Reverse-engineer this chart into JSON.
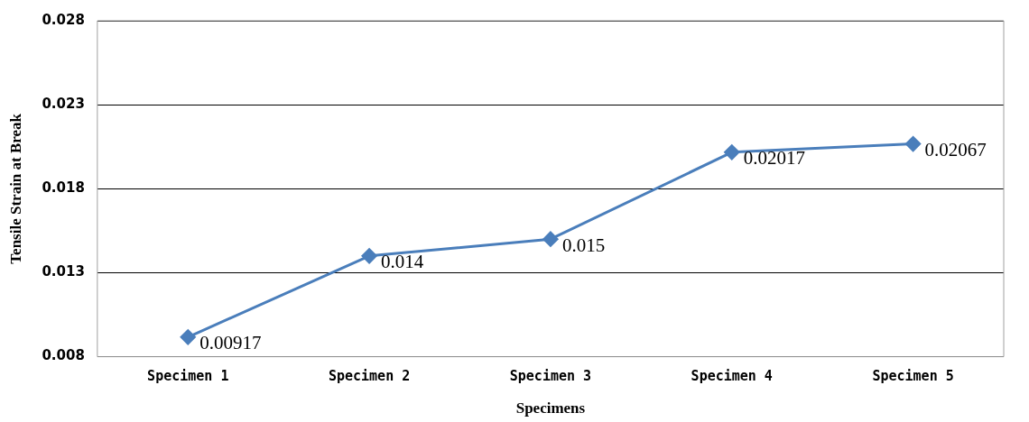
{
  "chart_data": {
    "type": "line",
    "xlabel": "Specimens",
    "ylabel": "Tensile Strain at Break",
    "categories": [
      "Specimen 1",
      "Specimen 2",
      "Specimen 3",
      "Specimen 4",
      "Specimen 5"
    ],
    "series": [
      {
        "color": "#4a7ebb",
        "values": [
          0.00917,
          0.014,
          0.015,
          0.02017,
          0.02067
        ]
      }
    ],
    "ylim": [
      0.008,
      0.028
    ],
    "yticks": [
      0.008,
      0.013,
      0.018,
      0.023,
      0.028
    ],
    "grid": "y",
    "legend": false,
    "marker": "diamond",
    "line_style": "solid",
    "data_labels": true
  }
}
